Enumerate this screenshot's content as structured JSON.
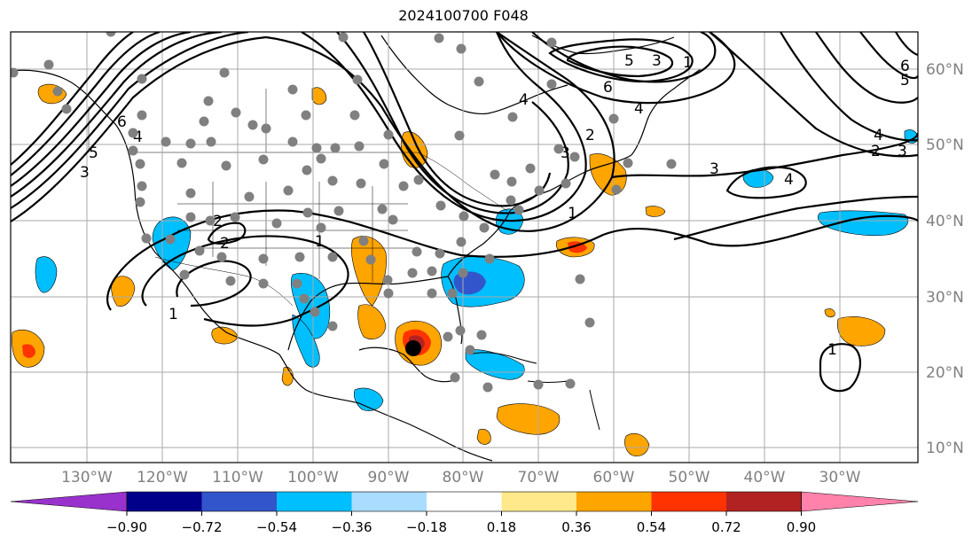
{
  "title": "2024100700 F048",
  "lat_labels": [
    "60°N",
    "50°N",
    "40°N",
    "30°N",
    "20°N",
    "10°N"
  ],
  "lon_labels": [
    "130°W",
    "120°W",
    "110°W",
    "100°W",
    "90°W",
    "80°W",
    "70°W",
    "60°W",
    "50°W",
    "40°W",
    "30°W"
  ],
  "colorbar": {
    "ticks": [
      "−0.90",
      "−0.72",
      "−0.54",
      "−0.36",
      "−0.18",
      "0.18",
      "0.36",
      "0.54",
      "0.72",
      "0.90"
    ],
    "colors": [
      "#9932cc",
      "#00008b",
      "#3355cc",
      "#00bfff",
      "#aadcff",
      "#ffffff",
      "#ffe98a",
      "#ffa500",
      "#ff3300",
      "#b22222",
      "#ff82ab"
    ]
  },
  "contour_labels": [
    "6",
    "5",
    "4",
    "3",
    "2",
    "1",
    "4",
    "3",
    "2",
    "1",
    "6",
    "5",
    "4",
    "3",
    "2",
    "1",
    "6",
    "5",
    "4",
    "3",
    "2",
    "1",
    "3",
    "4",
    "1"
  ],
  "storm_marker": {
    "color": "#000000"
  },
  "station_color": "#808080"
}
